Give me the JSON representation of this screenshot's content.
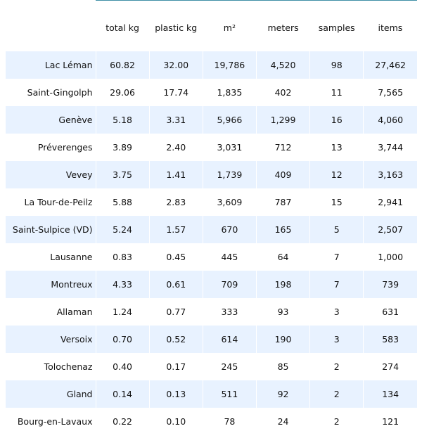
{
  "table": {
    "columns": [
      "total kg",
      "plastic kg",
      "m²",
      "meters",
      "samples",
      "items"
    ],
    "rows": [
      {
        "name": "Lac Léman",
        "values": [
          "60.82",
          "32.00",
          "19,786",
          "4,520",
          "98",
          "27,462"
        ]
      },
      {
        "name": "Saint-Gingolph",
        "values": [
          "29.06",
          "17.74",
          "1,835",
          "402",
          "11",
          "7,565"
        ]
      },
      {
        "name": "Genève",
        "values": [
          "5.18",
          "3.31",
          "5,966",
          "1,299",
          "16",
          "4,060"
        ]
      },
      {
        "name": "Préverenges",
        "values": [
          "3.89",
          "2.40",
          "3,031",
          "712",
          "13",
          "3,744"
        ]
      },
      {
        "name": "Vevey",
        "values": [
          "3.75",
          "1.41",
          "1,739",
          "409",
          "12",
          "3,163"
        ]
      },
      {
        "name": "La Tour-de-Peilz",
        "values": [
          "5.88",
          "2.83",
          "3,609",
          "787",
          "15",
          "2,941"
        ]
      },
      {
        "name": "Saint-Sulpice (VD)",
        "values": [
          "5.24",
          "1.57",
          "670",
          "165",
          "5",
          "2,507"
        ]
      },
      {
        "name": "Lausanne",
        "values": [
          "0.83",
          "0.45",
          "445",
          "64",
          "7",
          "1,000"
        ]
      },
      {
        "name": "Montreux",
        "values": [
          "4.33",
          "0.61",
          "709",
          "198",
          "7",
          "739"
        ]
      },
      {
        "name": "Allaman",
        "values": [
          "1.24",
          "0.77",
          "333",
          "93",
          "3",
          "631"
        ]
      },
      {
        "name": "Versoix",
        "values": [
          "0.70",
          "0.52",
          "614",
          "190",
          "3",
          "583"
        ]
      },
      {
        "name": "Tolochenaz",
        "values": [
          "0.40",
          "0.17",
          "245",
          "85",
          "2",
          "274"
        ]
      },
      {
        "name": "Gland",
        "values": [
          "0.14",
          "0.13",
          "511",
          "92",
          "2",
          "134"
        ]
      },
      {
        "name": "Bourg-en-Lavaux",
        "values": [
          "0.22",
          "0.10",
          "78",
          "24",
          "2",
          "121"
        ]
      }
    ]
  },
  "colors": {
    "stripe": "#e8f2ff",
    "header_rule": "#3f8fa6",
    "text": "#111111"
  }
}
